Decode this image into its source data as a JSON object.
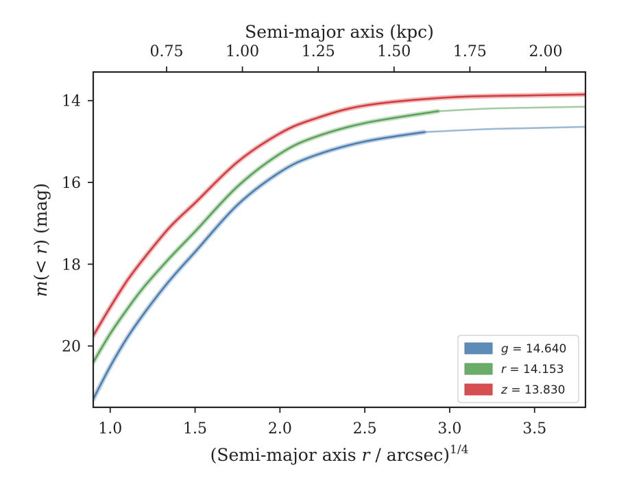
{
  "chart_data": {
    "type": "line",
    "title": "",
    "xlabel": "(Semi-major axis r / arcsec)",
    "xlabel_var": "r",
    "xlabel_exponent": "1/4",
    "ylabel": "m(< r) (mag)",
    "top_xlabel": "Semi-major axis (kpc)",
    "xlim": [
      0.9,
      3.8
    ],
    "ylim": [
      21.5,
      13.3
    ],
    "y_inverted": true,
    "grid": false,
    "legend_position": "lower-right",
    "x_ticks": [
      1.0,
      1.5,
      2.0,
      2.5,
      3.0,
      3.5
    ],
    "x_tick_labels": [
      "1.0",
      "1.5",
      "2.0",
      "2.5",
      "3.0",
      "3.5"
    ],
    "y_ticks": [
      14,
      16,
      18,
      20
    ],
    "y_tick_labels": [
      "14",
      "16",
      "18",
      "20"
    ],
    "top_ticks_kpc": [
      0.75,
      1.0,
      1.25,
      1.5,
      1.75,
      2.0
    ],
    "top_tick_labels": [
      "0.75",
      "1.00",
      "1.25",
      "1.50",
      "1.75",
      "2.00"
    ],
    "series": [
      {
        "name": "g = 14.640",
        "band": "g",
        "value": "14.640",
        "color": "#4c7fb0",
        "x": [
          0.9,
          1.0,
          1.1,
          1.2,
          1.35,
          1.5,
          1.75,
          2.0,
          2.2,
          2.5,
          2.85
        ],
        "y": [
          21.3,
          20.5,
          19.8,
          19.2,
          18.4,
          17.7,
          16.55,
          15.75,
          15.35,
          15.0,
          14.77
        ],
        "ext_x": [
          2.85,
          3.2,
          3.5,
          3.8
        ],
        "ext_y": [
          14.77,
          14.7,
          14.67,
          14.64
        ]
      },
      {
        "name": "r = 14.153",
        "band": "r",
        "value": "14.153",
        "color": "#5ba35b",
        "x": [
          0.9,
          1.0,
          1.1,
          1.2,
          1.35,
          1.5,
          1.75,
          2.0,
          2.2,
          2.5,
          2.93
        ],
        "y": [
          20.4,
          19.7,
          19.1,
          18.55,
          17.85,
          17.2,
          16.1,
          15.3,
          14.9,
          14.55,
          14.26
        ],
        "ext_x": [
          2.93,
          3.2,
          3.5,
          3.8
        ],
        "ext_y": [
          14.26,
          14.2,
          14.17,
          14.15
        ]
      },
      {
        "name": "z = 13.830",
        "band": "z",
        "value": "13.830",
        "color": "#d13c3f",
        "x": [
          0.9,
          1.0,
          1.1,
          1.2,
          1.35,
          1.5,
          1.75,
          2.0,
          2.2,
          2.5,
          3.0,
          3.5,
          3.8
        ],
        "y": [
          19.75,
          19.05,
          18.4,
          17.85,
          17.1,
          16.5,
          15.5,
          14.8,
          14.45,
          14.12,
          13.92,
          13.87,
          13.85
        ],
        "ext_x": [],
        "ext_y": []
      }
    ]
  }
}
